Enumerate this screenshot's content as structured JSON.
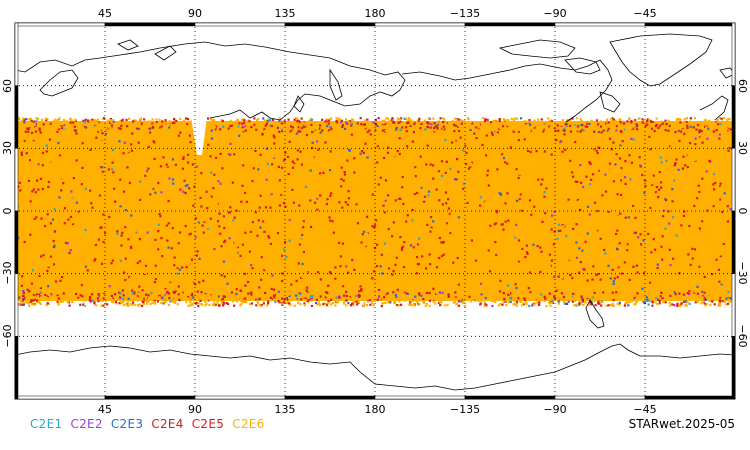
{
  "map": {
    "top_lon_ticks": [
      "45",
      "90",
      "135",
      "180",
      "−135",
      "−90",
      "−45"
    ],
    "bottom_lon_ticks": [
      "45",
      "90",
      "135",
      "180",
      "−135",
      "−90",
      "−45"
    ],
    "lat_ticks": [
      "60",
      "30",
      "0",
      "−30",
      "−60"
    ],
    "lon_tick_values": [
      45,
      90,
      135,
      180,
      -135,
      -90,
      -45
    ],
    "lat_tick_values": [
      60,
      30,
      0,
      -30,
      -60
    ],
    "lon_range": [
      0,
      360
    ],
    "lat_range": [
      -90,
      90
    ],
    "grid": "dotted",
    "data_lat_band": [
      -45,
      45
    ]
  },
  "legend": {
    "items": [
      {
        "label": "C2E1",
        "color": "#29a8c8"
      },
      {
        "label": "C2E2",
        "color": "#a040d0"
      },
      {
        "label": "C2E3",
        "color": "#2a6ad0"
      },
      {
        "label": "C2E4",
        "color": "#c8202a"
      },
      {
        "label": "C2E5",
        "color": "#e01818"
      },
      {
        "label": "C2E6",
        "color": "#ffb000"
      }
    ]
  },
  "source_label": "STARwet.2025-05"
}
